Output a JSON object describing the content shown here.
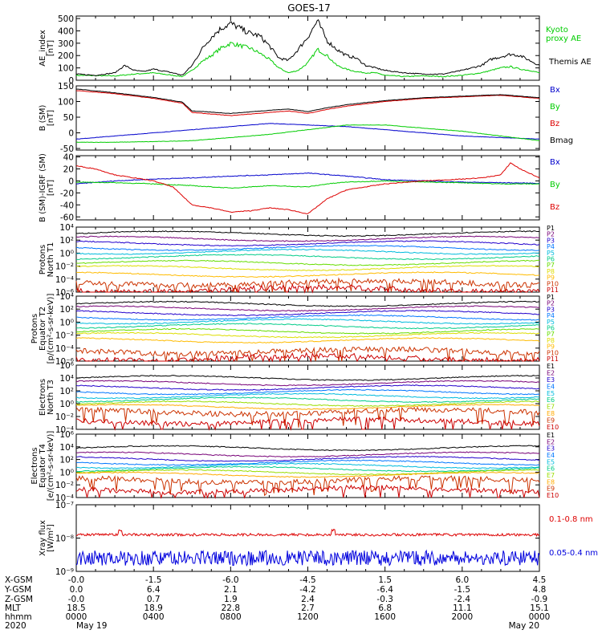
{
  "title": "GOES-17",
  "chart_data": [
    {
      "type": "line",
      "panel": "ae",
      "ylabel": [
        "AE_index",
        "[nT]"
      ],
      "ylim": [
        0,
        520
      ],
      "yticks": [
        "0",
        "100",
        "200",
        "300",
        "400",
        "500"
      ],
      "yscale": "linear",
      "series": [
        {
          "name": "Kyoto\nproxy AE",
          "color": "#00cc00",
          "x_hours": [
            0,
            2,
            3,
            4,
            5,
            5.5,
            6,
            6.5,
            7,
            7.5,
            8,
            8.5,
            9,
            9.5,
            10,
            10.5,
            11,
            11.5,
            12,
            12.5,
            13,
            13.5,
            14,
            14.5,
            15,
            15.5,
            16,
            17,
            18,
            19,
            20,
            21,
            21.5,
            22,
            22.5,
            23,
            23.5,
            24
          ],
          "values": [
            40,
            35,
            50,
            60,
            40,
            30,
            80,
            150,
            200,
            260,
            300,
            280,
            260,
            220,
            170,
            100,
            60,
            80,
            140,
            250,
            200,
            120,
            90,
            70,
            60,
            60,
            40,
            30,
            35,
            30,
            40,
            60,
            80,
            100,
            110,
            90,
            80,
            60
          ]
        },
        {
          "name": "Themis AE",
          "color": "#000000",
          "x_hours": [
            0,
            1,
            2,
            2.5,
            3,
            3.5,
            4,
            5,
            5.5,
            6,
            6.5,
            7,
            7.5,
            8,
            8.5,
            9,
            9.5,
            10,
            10.5,
            11,
            11.5,
            12,
            12.5,
            13,
            13.5,
            14,
            14.5,
            15,
            15.5,
            16,
            17,
            18,
            19,
            20,
            21,
            21.5,
            22,
            22.5,
            23,
            23.5,
            24
          ],
          "values": [
            50,
            40,
            60,
            120,
            80,
            70,
            90,
            60,
            40,
            120,
            250,
            350,
            420,
            460,
            420,
            380,
            360,
            280,
            180,
            160,
            250,
            350,
            480,
            320,
            250,
            200,
            180,
            120,
            100,
            80,
            60,
            50,
            50,
            80,
            120,
            170,
            190,
            210,
            200,
            160,
            120
          ]
        }
      ]
    },
    {
      "type": "line",
      "panel": "b_sm",
      "ylabel": [
        "B (SM)",
        "[nT]"
      ],
      "ylim": [
        -55,
        150
      ],
      "yticks": [
        "-50",
        "0",
        "50",
        "100",
        "150"
      ],
      "yscale": "linear",
      "series": [
        {
          "name": "Bx",
          "color": "#0000cc",
          "x_hours": [
            0,
            2,
            4,
            6,
            8,
            10,
            12,
            14,
            16,
            18,
            20,
            22,
            24
          ],
          "values": [
            -20,
            -10,
            0,
            10,
            20,
            30,
            25,
            20,
            10,
            0,
            -10,
            -15,
            -20
          ]
        },
        {
          "name": "By",
          "color": "#00cc00",
          "x_hours": [
            0,
            2,
            4,
            6,
            8,
            10,
            12,
            14,
            16,
            18,
            20,
            22,
            24
          ],
          "values": [
            -30,
            -30,
            -28,
            -25,
            -15,
            -5,
            10,
            25,
            25,
            15,
            5,
            -10,
            -25
          ]
        },
        {
          "name": "Bz",
          "color": "#dd0000",
          "x_hours": [
            0,
            2,
            4,
            5.5,
            6,
            7,
            8,
            9,
            10,
            11,
            12,
            13,
            14,
            16,
            18,
            20,
            22,
            24
          ],
          "values": [
            135,
            125,
            110,
            95,
            65,
            60,
            55,
            60,
            65,
            70,
            62,
            75,
            85,
            100,
            110,
            115,
            120,
            110
          ]
        },
        {
          "name": "Bmag",
          "color": "#000000",
          "x_hours": [
            0,
            2,
            4,
            5.5,
            6,
            7,
            8,
            9,
            10,
            11,
            12,
            13,
            14,
            16,
            18,
            20,
            22,
            24
          ],
          "values": [
            140,
            128,
            113,
            98,
            70,
            66,
            62,
            67,
            72,
            76,
            68,
            80,
            90,
            103,
            112,
            117,
            122,
            112
          ]
        }
      ]
    },
    {
      "type": "line",
      "panel": "b_igrf",
      "ylabel": [
        "B (SM)-IGRF (SM)",
        "[nT]"
      ],
      "ylim": [
        -65,
        42
      ],
      "yticks": [
        "-60",
        "-40",
        "-20",
        "0",
        "20",
        "40"
      ],
      "yscale": "linear",
      "series": [
        {
          "name": "Bx",
          "color": "#0000cc",
          "x_hours": [
            0,
            2,
            4,
            6,
            8,
            10,
            12,
            14,
            16,
            18,
            20,
            22,
            24
          ],
          "values": [
            -5,
            0,
            3,
            5,
            8,
            10,
            13,
            8,
            2,
            0,
            -2,
            -3,
            -4
          ]
        },
        {
          "name": "By",
          "color": "#00cc00",
          "x_hours": [
            0,
            2,
            4,
            6,
            7,
            8,
            10,
            12,
            13,
            14,
            16,
            18,
            20,
            22,
            24
          ],
          "values": [
            -2,
            -3,
            -5,
            -8,
            -10,
            -12,
            -8,
            -10,
            -5,
            -2,
            0,
            -2,
            -3,
            -5,
            -5
          ]
        },
        {
          "name": "Bz",
          "color": "#dd0000",
          "x_hours": [
            0,
            1,
            2,
            3,
            4,
            5,
            5.5,
            6,
            7,
            8,
            9,
            10,
            11,
            12,
            13,
            14,
            16,
            18,
            20,
            21,
            22,
            22.5,
            23,
            24
          ],
          "values": [
            25,
            20,
            10,
            5,
            0,
            -10,
            -25,
            -40,
            -45,
            -52,
            -50,
            -45,
            -48,
            -55,
            -30,
            -15,
            -5,
            0,
            3,
            5,
            10,
            30,
            20,
            5
          ]
        }
      ]
    },
    {
      "type": "line",
      "panel": "protons_t1",
      "ylabel": [
        "Protons",
        "North T1"
      ],
      "ylim_exp": [
        -6,
        4
      ],
      "yticks": [
        "10⁴",
        "10²",
        "10⁰",
        "10⁻²",
        "10⁻⁴",
        "10⁻⁶"
      ],
      "yscale": "log",
      "series_labels": [
        "P1",
        "P2",
        "P3",
        "P4",
        "P5",
        "P6",
        "P7",
        "P8",
        "P9",
        "P10",
        "P11"
      ],
      "series_colors": [
        "#000000",
        "#770077",
        "#2200cc",
        "#0077ff",
        "#00bbdd",
        "#00cc88",
        "#66dd00",
        "#dddd00",
        "#ffbb00",
        "#cc3300",
        "#cc0000"
      ],
      "series_log10_levels": [
        3.0,
        2.2,
        1.5,
        0.8,
        0.2,
        -0.6,
        -1.5,
        -2.3,
        -3.3,
        -4.6,
        -5.6
      ]
    },
    {
      "type": "line",
      "panel": "protons_t2",
      "ylabel": [
        "Protons",
        "Equator T2",
        "[p/(cm²-s-sr-keV)]"
      ],
      "ylim_exp": [
        -6,
        4
      ],
      "yticks": [
        "10⁴",
        "10²",
        "10⁰",
        "10⁻²",
        "10⁻⁴",
        "10⁻⁶"
      ],
      "yscale": "log",
      "series_labels": [
        "P1",
        "P2",
        "P3",
        "P4",
        "P5",
        "P6",
        "P7",
        "P8",
        "P9",
        "P10",
        "P11"
      ],
      "series_colors": [
        "#000000",
        "#770077",
        "#2200cc",
        "#0077ff",
        "#00bbdd",
        "#00cc88",
        "#66dd00",
        "#dddd00",
        "#ffbb00",
        "#cc3300",
        "#cc0000"
      ],
      "series_log10_levels": [
        2.8,
        2.1,
        1.4,
        0.7,
        0.1,
        -0.6,
        -1.4,
        -2.0,
        -2.8,
        -4.5,
        -5.5
      ]
    },
    {
      "type": "line",
      "panel": "electrons_t3",
      "ylabel": [
        "Electrons",
        "North T3"
      ],
      "ylim_exp": [
        -4,
        6
      ],
      "yticks": [
        "10⁶",
        "10⁴",
        "10²",
        "10⁰",
        "10⁻²",
        "10⁻⁴"
      ],
      "yscale": "log",
      "series_labels": [
        "E1",
        "E2",
        "E3",
        "E4",
        "E5",
        "E6",
        "E7",
        "E8",
        "E9",
        "E10"
      ],
      "series_colors": [
        "#000000",
        "#770077",
        "#2200cc",
        "#0077ff",
        "#00bbdd",
        "#00cc88",
        "#99dd00",
        "#ffaa00",
        "#cc3300",
        "#cc0000"
      ],
      "series_log10_levels": [
        4.0,
        3.2,
        2.5,
        1.8,
        1.2,
        0.6,
        0.0,
        -0.5,
        -1.3,
        -2.8
      ]
    },
    {
      "type": "line",
      "panel": "electrons_t4",
      "ylabel": [
        "Electrons",
        "Equator T4",
        "[e/(cm²-s-sr-keV)]"
      ],
      "ylim_exp": [
        -4,
        6
      ],
      "yticks": [
        "10⁶",
        "10⁴",
        "10²",
        "10⁰",
        "10⁻²",
        "10⁻⁴"
      ],
      "yscale": "log",
      "series_labels": [
        "E1",
        "E2",
        "E3",
        "E4",
        "E5",
        "E6",
        "E7",
        "E8",
        "E9",
        "E10"
      ],
      "series_colors": [
        "#000000",
        "#770077",
        "#2200cc",
        "#0077ff",
        "#00bbdd",
        "#00cc88",
        "#99dd00",
        "#ffaa00",
        "#cc3300",
        "#cc0000"
      ],
      "series_log10_levels": [
        3.8,
        2.8,
        2.1,
        1.5,
        1.0,
        0.5,
        0.0,
        -0.4,
        -1.3,
        -2.8
      ]
    },
    {
      "type": "line",
      "panel": "xray",
      "ylabel": [
        "Xray flux",
        "[W/m²]"
      ],
      "ylim_exp": [
        -9,
        -7
      ],
      "yticks": [
        "10⁻⁷",
        "10⁻⁸",
        "10⁻⁹"
      ],
      "yscale": "log",
      "series": [
        {
          "name": "0.1-0.8 nm",
          "color": "#dd0000",
          "log10_level": -7.9
        },
        {
          "name": "0.05-0.4 nm",
          "color": "#0000dd",
          "log10_level": -8.6
        }
      ]
    }
  ],
  "x_axis": {
    "xlim_hours": [
      0,
      24
    ],
    "row_labels": [
      "X-GSM",
      "Y-GSM",
      "Z-GSM",
      "MLT",
      "hhmm",
      "2020"
    ],
    "columns": [
      [
        "-0.0",
        "0.0",
        "-0.0",
        "18.5",
        "0000",
        "May 19"
      ],
      [
        "-1.5",
        "6.4",
        "0.7",
        "18.9",
        "0400",
        ""
      ],
      [
        "-6.0",
        "2.1",
        "1.9",
        "22.8",
        "0800",
        ""
      ],
      [
        "-4.5",
        "-4.2",
        "2.4",
        "2.7",
        "1200",
        ""
      ],
      [
        "1.5",
        "-6.4",
        "-0.3",
        "6.8",
        "1600",
        ""
      ],
      [
        "6.0",
        "-1.5",
        "-2.4",
        "11.1",
        "2000",
        ""
      ],
      [
        "4.5",
        "4.8",
        "-0.9",
        "15.1",
        "0000",
        "May 20"
      ]
    ]
  }
}
